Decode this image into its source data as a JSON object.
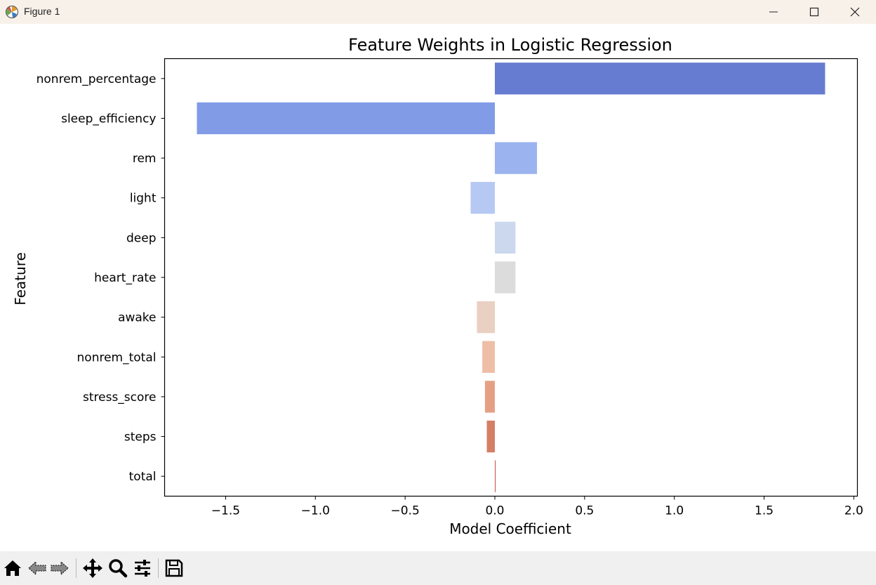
{
  "window": {
    "title": "Figure 1",
    "controls": {
      "minimize": "minimize",
      "maximize": "maximize",
      "close": "close"
    }
  },
  "toolbar": {
    "buttons": [
      "home-icon",
      "back-icon",
      "forward-icon",
      "pan-icon",
      "zoom-icon",
      "configure-icon",
      "save-icon"
    ]
  },
  "chart_data": {
    "type": "bar",
    "orientation": "horizontal",
    "title": "Feature Weights in Logistic Regression",
    "xlabel": "Model Coefficient",
    "ylabel": "Feature",
    "categories": [
      "nonrem_percentage",
      "sleep_efficiency",
      "rem",
      "light",
      "deep",
      "heart_rate",
      "awake",
      "nonrem_total",
      "stress_score",
      "steps",
      "total"
    ],
    "values": [
      1.84,
      -1.66,
      0.235,
      -0.135,
      0.115,
      0.115,
      -0.1,
      -0.07,
      -0.055,
      -0.045,
      0.004
    ],
    "colors": [
      "#667cd0",
      "#819be6",
      "#9bb4ef",
      "#b5c9f3",
      "#cbd8ee",
      "#dcdcdc",
      "#e9d0c2",
      "#eebea6",
      "#e5a084",
      "#d47f66",
      "#c0544a"
    ],
    "xlim": [
      -1.84,
      2.02
    ],
    "xticks": [
      -1.5,
      -1.0,
      -0.5,
      0.0,
      0.5,
      1.0,
      1.5,
      2.0
    ],
    "xtick_labels": [
      "−1.5",
      "−1.0",
      "−0.5",
      "0.0",
      "0.5",
      "1.0",
      "1.5",
      "2.0"
    ],
    "grid": false,
    "legend": "none"
  }
}
